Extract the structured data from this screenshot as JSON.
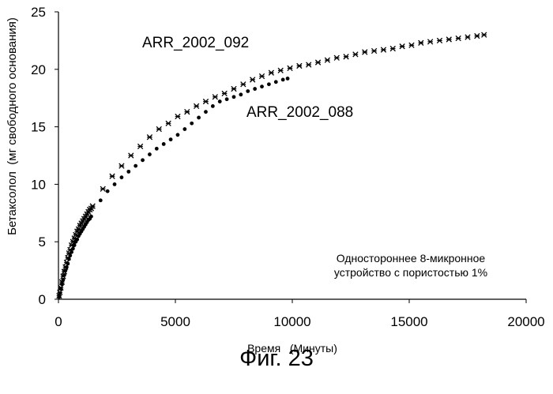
{
  "figure": {
    "caption": "Фиг. 23"
  },
  "chart_data": {
    "type": "scatter",
    "title": "",
    "xlabel": "Время   (Минуты)",
    "ylabel": "Бетаксолол  (мг свободного основания)",
    "xlim": [
      0,
      20000
    ],
    "ylim": [
      0,
      25
    ],
    "xticks": [
      0,
      5000,
      10000,
      15000,
      20000
    ],
    "yticks": [
      0,
      5,
      10,
      15,
      20,
      25
    ],
    "grid": false,
    "note": [
      "Одностороннее 8-микронное",
      "устройство с пористостью 1%"
    ],
    "series": [
      {
        "name": "ARR_2002_092",
        "marker": "star",
        "x": [
          30,
          60,
          100,
          150,
          200,
          250,
          300,
          350,
          400,
          450,
          500,
          560,
          620,
          680,
          740,
          800,
          860,
          920,
          980,
          1040,
          1100,
          1160,
          1220,
          1280,
          1340,
          1400,
          1460,
          1900,
          2300,
          2700,
          3100,
          3500,
          3900,
          4300,
          4700,
          5100,
          5500,
          5900,
          6300,
          6700,
          7100,
          7500,
          7900,
          8300,
          8700,
          9100,
          9500,
          9900,
          10300,
          10700,
          11100,
          11500,
          11900,
          12300,
          12700,
          13100,
          13500,
          13900,
          14300,
          14700,
          15100,
          15500,
          15900,
          16300,
          16700,
          17100,
          17500,
          17900,
          18200
        ],
        "y": [
          0.3,
          0.6,
          1.0,
          1.5,
          2.0,
          2.4,
          2.8,
          3.2,
          3.6,
          4.0,
          4.3,
          4.7,
          5.0,
          5.3,
          5.6,
          5.9,
          6.1,
          6.4,
          6.6,
          6.8,
          7.0,
          7.2,
          7.4,
          7.6,
          7.8,
          7.9,
          8.1,
          9.6,
          10.7,
          11.6,
          12.5,
          13.3,
          14.1,
          14.8,
          15.3,
          15.9,
          16.3,
          16.8,
          17.2,
          17.6,
          17.9,
          18.3,
          18.7,
          19.1,
          19.4,
          19.7,
          19.9,
          20.1,
          20.3,
          20.4,
          20.6,
          20.8,
          21.0,
          21.1,
          21.3,
          21.5,
          21.6,
          21.7,
          21.8,
          22.0,
          22.1,
          22.3,
          22.4,
          22.5,
          22.6,
          22.7,
          22.8,
          22.9,
          23.0
        ]
      },
      {
        "name": "ARR_2002_088",
        "marker": "dot",
        "x": [
          30,
          60,
          100,
          150,
          200,
          250,
          300,
          350,
          400,
          450,
          500,
          560,
          620,
          680,
          740,
          800,
          860,
          920,
          980,
          1040,
          1100,
          1160,
          1220,
          1280,
          1340,
          1400,
          1800,
          2100,
          2400,
          2700,
          3000,
          3300,
          3600,
          3900,
          4200,
          4500,
          4800,
          5100,
          5400,
          5700,
          6000,
          6300,
          6600,
          6900,
          7200,
          7500,
          7800,
          8100,
          8400,
          8700,
          9000,
          9300,
          9600,
          9800
        ],
        "y": [
          0.2,
          0.5,
          0.9,
          1.3,
          1.7,
          2.1,
          2.5,
          2.8,
          3.1,
          3.5,
          3.8,
          4.1,
          4.4,
          4.7,
          5.0,
          5.2,
          5.5,
          5.7,
          5.9,
          6.1,
          6.3,
          6.5,
          6.7,
          6.9,
          7.0,
          7.2,
          8.6,
          9.4,
          10.0,
          10.6,
          11.1,
          11.6,
          12.1,
          12.6,
          13.1,
          13.5,
          13.9,
          14.3,
          14.8,
          15.3,
          15.8,
          16.3,
          16.8,
          17.2,
          17.4,
          17.6,
          17.8,
          18.1,
          18.3,
          18.5,
          18.7,
          18.9,
          19.1,
          19.2
        ]
      }
    ]
  }
}
